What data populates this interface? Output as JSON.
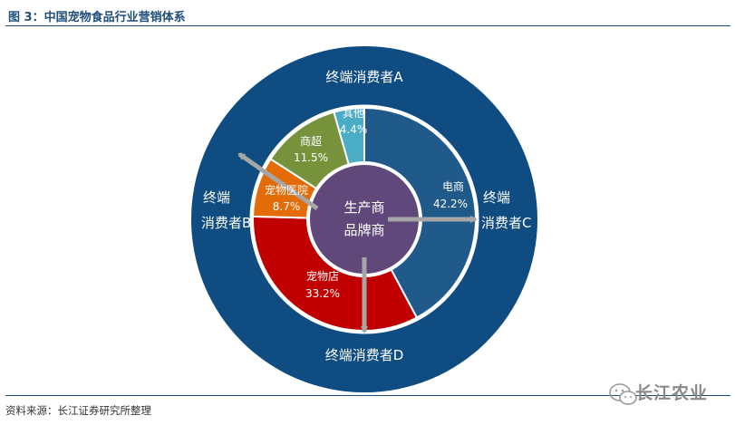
{
  "header": {
    "title": "图 3：中国宠物食品行业营销体系"
  },
  "footer": {
    "source": "资料来源：长江证券研究所整理"
  },
  "watermark": {
    "text": "长江农业",
    "icon": "wechat-icon"
  },
  "diagram": {
    "outer_labels": {
      "a": "终端消费者A",
      "b_line1": "终端",
      "b_line2": "消费者B",
      "c_line1": "终端",
      "c_line2": "消费者C",
      "d": "终端消费者D"
    },
    "center": {
      "line1": "生产商",
      "line2": "品牌商"
    },
    "segments": [
      {
        "name": "电商",
        "share": 42.2,
        "label": "42.2%",
        "color": "#1f5a8a"
      },
      {
        "name": "宠物店",
        "share": 33.2,
        "label": "33.2%",
        "color": "#c00000"
      },
      {
        "name": "宠物医院",
        "share": 8.7,
        "label": "8.7%",
        "color": "#e36c09"
      },
      {
        "name": "商超",
        "share": 11.5,
        "label": "11.5%",
        "color": "#76933c"
      },
      {
        "name": "其他",
        "share": 4.4,
        "label": "4.4%",
        "color": "#4bacc6"
      }
    ],
    "colors": {
      "outer_disc": "#0f4c81",
      "center_disc": "#60497a",
      "arrows": "#a6a6a6",
      "label_text": "#ffffff"
    }
  }
}
